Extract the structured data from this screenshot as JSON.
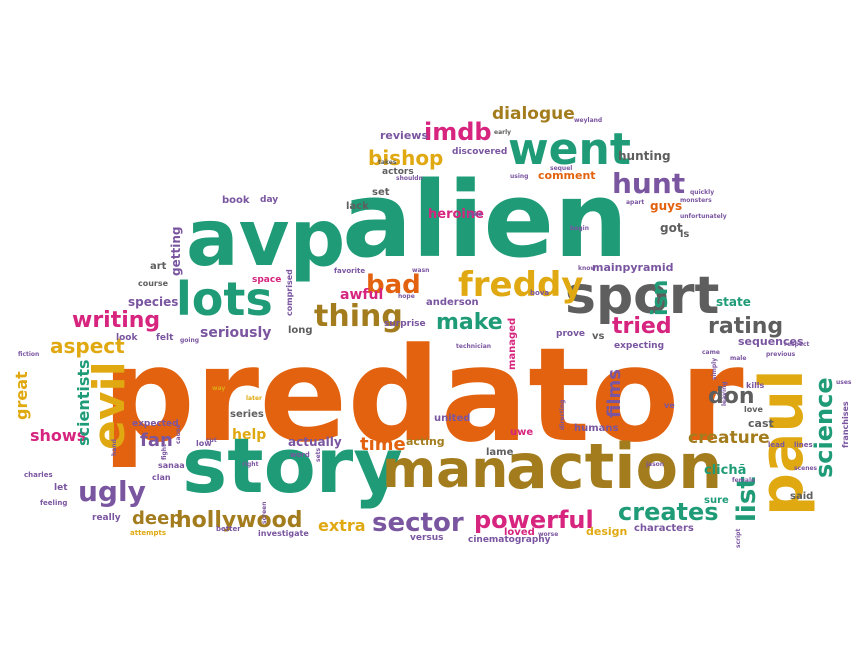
{
  "palette": {
    "orange": "#e2620f",
    "green": "#1f9c77",
    "gray": "#5e5e5e",
    "brown": "#a37c1e",
    "pink": "#d6247f",
    "purple": "#7a55a0",
    "gold": "#e0a912"
  },
  "words": [
    {
      "t": "predator",
      "c": "orange"
    },
    {
      "t": "alien",
      "c": "green"
    },
    {
      "t": "avp",
      "c": "green"
    },
    {
      "t": "story",
      "c": "green"
    },
    {
      "t": "man",
      "c": "brown"
    },
    {
      "t": "action",
      "c": "brown"
    },
    {
      "t": "sport",
      "c": "gray"
    },
    {
      "t": "paul",
      "c": "gold"
    },
    {
      "t": "lots",
      "c": "green"
    },
    {
      "t": "went",
      "c": "green"
    },
    {
      "t": "evil",
      "c": "gold"
    },
    {
      "t": "freddy",
      "c": "gold"
    },
    {
      "t": "hunt",
      "c": "purple"
    },
    {
      "t": "imdb",
      "c": "pink"
    },
    {
      "t": "bishop",
      "c": "gold"
    },
    {
      "t": "ugly",
      "c": "purple"
    },
    {
      "t": "sector",
      "c": "purple"
    },
    {
      "t": "powerful",
      "c": "pink"
    },
    {
      "t": "hollywood",
      "c": "brown"
    },
    {
      "t": "creates",
      "c": "green"
    },
    {
      "t": "list",
      "c": "green"
    },
    {
      "t": "science",
      "c": "green"
    },
    {
      "t": "thing",
      "c": "brown"
    },
    {
      "t": "rating",
      "c": "gray"
    },
    {
      "t": "writing",
      "c": "pink"
    },
    {
      "t": "make",
      "c": "green"
    },
    {
      "t": "tried",
      "c": "pink"
    },
    {
      "t": "bad",
      "c": "orange"
    },
    {
      "t": "dialogue",
      "c": "brown"
    },
    {
      "t": "don",
      "c": "gray"
    },
    {
      "t": "creature",
      "c": "brown"
    },
    {
      "t": "deep",
      "c": "brown"
    },
    {
      "t": "fan",
      "c": "purple"
    },
    {
      "t": "aspect",
      "c": "gold"
    },
    {
      "t": "shows",
      "c": "pink"
    },
    {
      "t": "great",
      "c": "gold"
    },
    {
      "t": "scientists",
      "c": "green"
    },
    {
      "t": "seriously",
      "c": "purple"
    },
    {
      "t": "time",
      "c": "orange"
    },
    {
      "t": "films",
      "c": "purple"
    },
    {
      "t": "help",
      "c": "gold"
    },
    {
      "t": "extra",
      "c": "gold"
    },
    {
      "t": "isn",
      "c": "green"
    },
    {
      "t": "heroine",
      "c": "pink"
    },
    {
      "t": "comment",
      "c": "orange"
    },
    {
      "t": "hunting",
      "c": "gray"
    },
    {
      "t": "reviews",
      "c": "purple"
    },
    {
      "t": "discovered",
      "c": "purple"
    },
    {
      "t": "actors",
      "c": "gray"
    },
    {
      "t": "book",
      "c": "purple"
    },
    {
      "t": "day",
      "c": "purple"
    },
    {
      "t": "lack",
      "c": "gray"
    },
    {
      "t": "set",
      "c": "gray"
    },
    {
      "t": "getting",
      "c": "purple"
    },
    {
      "t": "art",
      "c": "gray"
    },
    {
      "t": "course",
      "c": "gray"
    },
    {
      "t": "species",
      "c": "purple"
    },
    {
      "t": "space",
      "c": "pink"
    },
    {
      "t": "awful",
      "c": "pink"
    },
    {
      "t": "anderson",
      "c": "purple"
    },
    {
      "t": "mainpyramid",
      "c": "purple"
    },
    {
      "t": "state",
      "c": "green"
    },
    {
      "t": "sequences",
      "c": "purple"
    },
    {
      "t": "cast",
      "c": "gray"
    },
    {
      "t": "clichã",
      "c": "green"
    },
    {
      "t": "united",
      "c": "purple"
    },
    {
      "t": "uwe",
      "c": "pink"
    },
    {
      "t": "humans",
      "c": "purple"
    },
    {
      "t": "actually",
      "c": "purple"
    },
    {
      "t": "acting",
      "c": "brown"
    },
    {
      "t": "lame",
      "c": "gray"
    },
    {
      "t": "sure",
      "c": "green"
    },
    {
      "t": "said",
      "c": "gray"
    },
    {
      "t": "characters",
      "c": "purple"
    },
    {
      "t": "cinematography",
      "c": "purple"
    },
    {
      "t": "loved",
      "c": "pink"
    },
    {
      "t": "versus",
      "c": "purple"
    },
    {
      "t": "design",
      "c": "gold"
    },
    {
      "t": "expected",
      "c": "purple"
    },
    {
      "t": "series",
      "c": "gray"
    },
    {
      "t": "long",
      "c": "gray"
    },
    {
      "t": "surprise",
      "c": "purple"
    },
    {
      "t": "prove",
      "c": "purple"
    },
    {
      "t": "managed",
      "c": "pink"
    },
    {
      "t": "expecting",
      "c": "purple"
    },
    {
      "t": "vs",
      "c": "gray"
    },
    {
      "t": "guys",
      "c": "orange"
    },
    {
      "t": "got",
      "c": "gray"
    },
    {
      "t": "ls",
      "c": "gray"
    },
    {
      "t": "kills",
      "c": "purple"
    },
    {
      "t": "love",
      "c": "gray"
    },
    {
      "t": "franchises",
      "c": "purple"
    },
    {
      "t": "really",
      "c": "purple"
    },
    {
      "t": "attempts",
      "c": "gold"
    },
    {
      "t": "let",
      "c": "purple"
    },
    {
      "t": "feeling",
      "c": "purple"
    },
    {
      "t": "charles",
      "c": "purple"
    },
    {
      "t": "sanaa",
      "c": "purple"
    },
    {
      "t": "clan",
      "c": "purple"
    },
    {
      "t": "better",
      "c": "purple"
    },
    {
      "t": "investigate",
      "c": "purple"
    },
    {
      "t": "look",
      "c": "purple"
    },
    {
      "t": "felt",
      "c": "purple"
    },
    {
      "t": "fiction",
      "c": "purple"
    },
    {
      "t": "way",
      "c": "gold"
    },
    {
      "t": "later",
      "c": "gold"
    },
    {
      "t": "low",
      "c": "purple"
    },
    {
      "t": "hand",
      "c": "purple"
    },
    {
      "t": "favorite",
      "c": "purple"
    },
    {
      "t": "comprised",
      "c": "purple"
    },
    {
      "t": "technician",
      "c": "purple"
    },
    {
      "t": "bova",
      "c": "purple"
    },
    {
      "t": "came",
      "c": "purple"
    },
    {
      "t": "previous",
      "c": "purple"
    },
    {
      "t": "lead",
      "c": "purple"
    },
    {
      "t": "lines",
      "c": "purple"
    },
    {
      "t": "female",
      "c": "purple"
    },
    {
      "t": "jason",
      "c": "purple"
    },
    {
      "t": "script",
      "c": "purple"
    },
    {
      "t": "weyland",
      "c": "purple"
    },
    {
      "t": "early",
      "c": "gray"
    },
    {
      "t": "takes",
      "c": "gray"
    },
    {
      "t": "shouldn",
      "c": "purple"
    },
    {
      "t": "apart",
      "c": "purple"
    },
    {
      "t": "monsters",
      "c": "purple"
    },
    {
      "t": "unfortunately",
      "c": "purple"
    },
    {
      "t": "begin",
      "c": "purple"
    },
    {
      "t": "joke",
      "c": "purple"
    },
    {
      "t": "directing",
      "c": "purple"
    },
    {
      "t": "leaving",
      "c": "purple"
    },
    {
      "t": "ve",
      "c": "purple"
    },
    {
      "t": "scenes",
      "c": "purple"
    },
    {
      "t": "respect",
      "c": "purple"
    },
    {
      "t": "quickly",
      "c": "purple"
    },
    {
      "t": "using",
      "c": "purple"
    },
    {
      "t": "sequel",
      "c": "purple"
    },
    {
      "t": "fight",
      "c": "purple"
    },
    {
      "t": "cause",
      "c": "purple"
    },
    {
      "t": "word",
      "c": "purple"
    },
    {
      "t": "right",
      "c": "purple"
    },
    {
      "t": "going",
      "c": "purple"
    },
    {
      "t": "simply",
      "c": "purple"
    },
    {
      "t": "male",
      "c": "purple"
    },
    {
      "t": "uses",
      "c": "purple"
    },
    {
      "t": "worse",
      "c": "purple"
    },
    {
      "t": "screen",
      "c": "purple"
    },
    {
      "t": "know",
      "c": "purple"
    },
    {
      "t": "wasn",
      "c": "purple"
    },
    {
      "t": "cut",
      "c": "purple"
    },
    {
      "t": "sets",
      "c": "purple"
    },
    {
      "t": "hope",
      "c": "purple"
    }
  ]
}
